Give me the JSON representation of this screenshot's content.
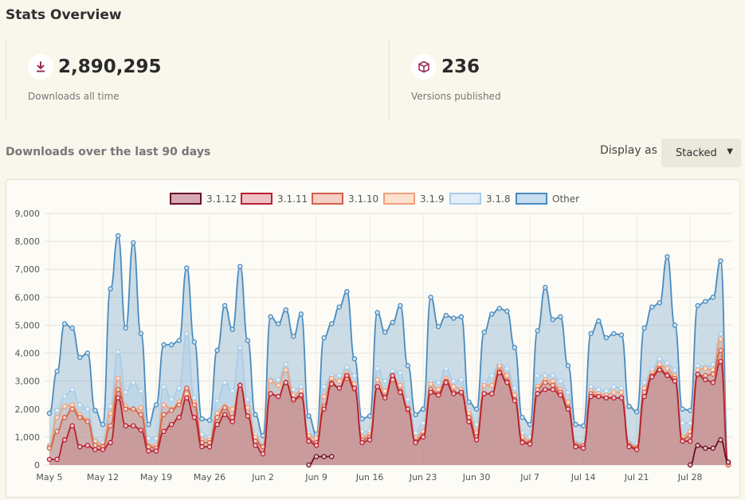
{
  "page": {
    "title": "Stats Overview"
  },
  "stats": {
    "downloads": {
      "value": "2,890,295",
      "label": "Downloads all time",
      "icon": "download-icon"
    },
    "versions": {
      "value": "236",
      "label": "Versions published",
      "icon": "package-icon"
    }
  },
  "section": {
    "title": "Downloads over the last 90 days",
    "display_label": "Display as",
    "display_value": "Stacked"
  },
  "colors": {
    "accent": "#9b2c5a",
    "v3112": "#6b0f24",
    "v3111": "#b8202f",
    "v3110": "#d4604a",
    "v319": "#f0a07a",
    "v318": "#a9cce8",
    "other": "#4a8cc0"
  },
  "chart_data": {
    "type": "area",
    "stacked": true,
    "ylim": [
      0,
      9000
    ],
    "yticks": [
      "0",
      "1,000",
      "2,000",
      "3,000",
      "4,000",
      "5,000",
      "6,000",
      "7,000",
      "8,000",
      "9,000"
    ],
    "x_ticks": [
      {
        "label": "May 5",
        "day": 0
      },
      {
        "label": "May 12",
        "day": 7
      },
      {
        "label": "May 19",
        "day": 14
      },
      {
        "label": "May 26",
        "day": 21
      },
      {
        "label": "Jun 2",
        "day": 28
      },
      {
        "label": "Jun 9",
        "day": 35
      },
      {
        "label": "Jun 16",
        "day": 42
      },
      {
        "label": "Jun 23",
        "day": 49
      },
      {
        "label": "Jun 30",
        "day": 56
      },
      {
        "label": "Jul 7",
        "day": 63
      },
      {
        "label": "Jul 14",
        "day": 70
      },
      {
        "label": "Jul 21",
        "day": 77
      },
      {
        "label": "Jul 28",
        "day": 84
      }
    ],
    "grid": true,
    "legend_position": "top",
    "series": [
      {
        "name": "3.1.12",
        "start_day": 34,
        "totals": [
          0,
          300,
          300,
          300
        ],
        "late_start_day": 85,
        "late_totals": [
          0,
          700,
          600,
          600,
          900,
          100
        ]
      },
      {
        "name": "3.1.11"
      },
      {
        "name": "3.1.10"
      },
      {
        "name": "3.1.9"
      },
      {
        "name": "3.1.8"
      },
      {
        "name": "Other"
      }
    ],
    "cumulative_top": {
      "Other": [
        1850,
        3350,
        5050,
        4900,
        3850,
        4000,
        1950,
        1450,
        6300,
        8200,
        4900,
        7950,
        4700,
        1450,
        2150,
        4300,
        4300,
        4450,
        7050,
        4400,
        1650,
        1600,
        4100,
        5700,
        4850,
        7100,
        4450,
        1800,
        1050,
        5300,
        5050,
        5550,
        4600,
        5400,
        1750,
        1100,
        4550,
        5050,
        5650,
        6200,
        3800,
        1650,
        1750,
        5450,
        4750,
        5100,
        5700,
        3550,
        1800,
        2000,
        6000,
        4950,
        5350,
        5250,
        5300,
        2250,
        2000,
        4750,
        5400,
        5600,
        5500,
        4200,
        1700,
        1450,
        4800,
        6350,
        5200,
        5300,
        3550,
        1450,
        1400,
        4700,
        5150,
        4550,
        4700,
        4650,
        2100,
        1900,
        4900,
        5650,
        5800,
        7450,
        5000,
        2000,
        1950,
        5700,
        5850,
        6000,
        7300,
        0
      ],
      "3.1.8": [
        700,
        1950,
        2450,
        2700,
        2150,
        2000,
        900,
        800,
        2100,
        4050,
        2600,
        2950,
        2650,
        950,
        950,
        2800,
        2350,
        2750,
        4700,
        2400,
        1100,
        1000,
        2300,
        2950,
        2650,
        4200,
        2350,
        1100,
        700,
        3050,
        3050,
        3600,
        2700,
        2800,
        1150,
        1000,
        2800,
        3200,
        3200,
        3500,
        3200,
        1200,
        1200,
        3450,
        3000,
        3350,
        3300,
        2350,
        1150,
        1500,
        3000,
        2950,
        3450,
        3000,
        3050,
        1950,
        1450,
        2950,
        3200,
        3650,
        3450,
        2750,
        1150,
        1000,
        3200,
        3200,
        3200,
        3000,
        2600,
        800,
        800,
        2800,
        2700,
        2650,
        2800,
        2750,
        800,
        750,
        2950,
        3400,
        3800,
        3650,
        3400,
        1500,
        1500,
        3550,
        3500,
        3600,
        4700,
        0
      ],
      "3.1.9": [
        650,
        1700,
        2100,
        2150,
        1800,
        1600,
        850,
        700,
        1850,
        3100,
        2100,
        1950,
        2050,
        700,
        700,
        2150,
        2000,
        2250,
        2550,
        2250,
        900,
        900,
        1850,
        2100,
        2000,
        2800,
        2050,
        1000,
        650,
        3000,
        2850,
        3400,
        2500,
        2650,
        1050,
        950,
        2450,
        3100,
        3000,
        3300,
        2900,
        1000,
        1100,
        3050,
        2650,
        3150,
        2850,
        2050,
        950,
        1200,
        2900,
        2700,
        3100,
        2800,
        2700,
        1850,
        1150,
        2850,
        2850,
        3550,
        3200,
        2500,
        1000,
        850,
        2800,
        3050,
        3000,
        2700,
        2250,
        750,
        700,
        2650,
        2550,
        2500,
        2600,
        2600,
        750,
        650,
        2750,
        3300,
        3600,
        3450,
        3200,
        1000,
        1200,
        3400,
        3450,
        3400,
        4500,
        0
      ],
      "3.1.10": [
        600,
        1200,
        1700,
        2000,
        1700,
        1550,
        700,
        650,
        1400,
        2700,
        2000,
        2000,
        1800,
        650,
        600,
        1800,
        1950,
        2150,
        2750,
        2150,
        800,
        800,
        1700,
        2050,
        1700,
        2850,
        1750,
        850,
        650,
        2550,
        2450,
        2950,
        2300,
        2450,
        900,
        800,
        2100,
        2950,
        2750,
        3100,
        2700,
        900,
        1000,
        2800,
        2450,
        3050,
        2650,
        1950,
        850,
        1050,
        2700,
        2550,
        3000,
        2600,
        2550,
        1700,
        1000,
        2550,
        2550,
        3350,
        3000,
        2350,
        850,
        800,
        2700,
        2950,
        2850,
        2600,
        2050,
        700,
        700,
        2550,
        2450,
        2400,
        2400,
        2400,
        700,
        600,
        2600,
        3200,
        3450,
        3250,
        3100,
        900,
        1050,
        3200,
        3200,
        3250,
        4100,
        0
      ],
      "3.1.11": [
        200,
        200,
        900,
        1400,
        650,
        700,
        550,
        550,
        800,
        2400,
        1400,
        1400,
        1250,
        500,
        500,
        1200,
        1450,
        1700,
        2400,
        1700,
        650,
        650,
        1450,
        1800,
        1550,
        2850,
        1750,
        700,
        400,
        2550,
        2450,
        2950,
        2350,
        2500,
        850,
        700,
        2000,
        2900,
        2750,
        3200,
        2750,
        800,
        900,
        2800,
        2400,
        3200,
        2600,
        2000,
        800,
        1000,
        2600,
        2500,
        2950,
        2550,
        2600,
        1550,
        900,
        2550,
        2550,
        3300,
        2950,
        2300,
        800,
        750,
        2550,
        2700,
        2700,
        2500,
        2000,
        650,
        600,
        2450,
        2450,
        2400,
        2400,
        2400,
        650,
        550,
        2450,
        3150,
        3400,
        3200,
        3000,
        850,
        850,
        3250,
        3050,
        2950,
        3700,
        100
      ]
    }
  }
}
